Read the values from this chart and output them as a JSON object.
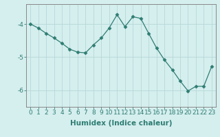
{
  "x": [
    0,
    1,
    2,
    3,
    4,
    5,
    6,
    7,
    8,
    9,
    10,
    11,
    12,
    13,
    14,
    15,
    16,
    17,
    18,
    19,
    20,
    21,
    22,
    23
  ],
  "y": [
    -4.0,
    -4.12,
    -4.28,
    -4.42,
    -4.58,
    -4.76,
    -4.85,
    -4.87,
    -4.63,
    -4.42,
    -4.12,
    -3.72,
    -4.08,
    -3.78,
    -3.83,
    -4.28,
    -4.72,
    -5.08,
    -5.38,
    -5.72,
    -6.02,
    -5.88,
    -5.88,
    -5.28
  ],
  "line_color": "#2e7d72",
  "marker": "D",
  "marker_size": 2.5,
  "bg_color": "#d5eeee",
  "grid_color": "#b8d8d8",
  "axis_color": "#888888",
  "tick_color": "#2e7d72",
  "xlabel": "Humidex (Indice chaleur)",
  "ylim": [
    -6.5,
    -3.4
  ],
  "xlim": [
    -0.5,
    23.5
  ],
  "yticks": [
    -6,
    -5,
    -4
  ],
  "xticks": [
    0,
    1,
    2,
    3,
    4,
    5,
    6,
    7,
    8,
    9,
    10,
    11,
    12,
    13,
    14,
    15,
    16,
    17,
    18,
    19,
    20,
    21,
    22,
    23
  ],
  "font_size": 6.5,
  "label_font_size": 7.5
}
